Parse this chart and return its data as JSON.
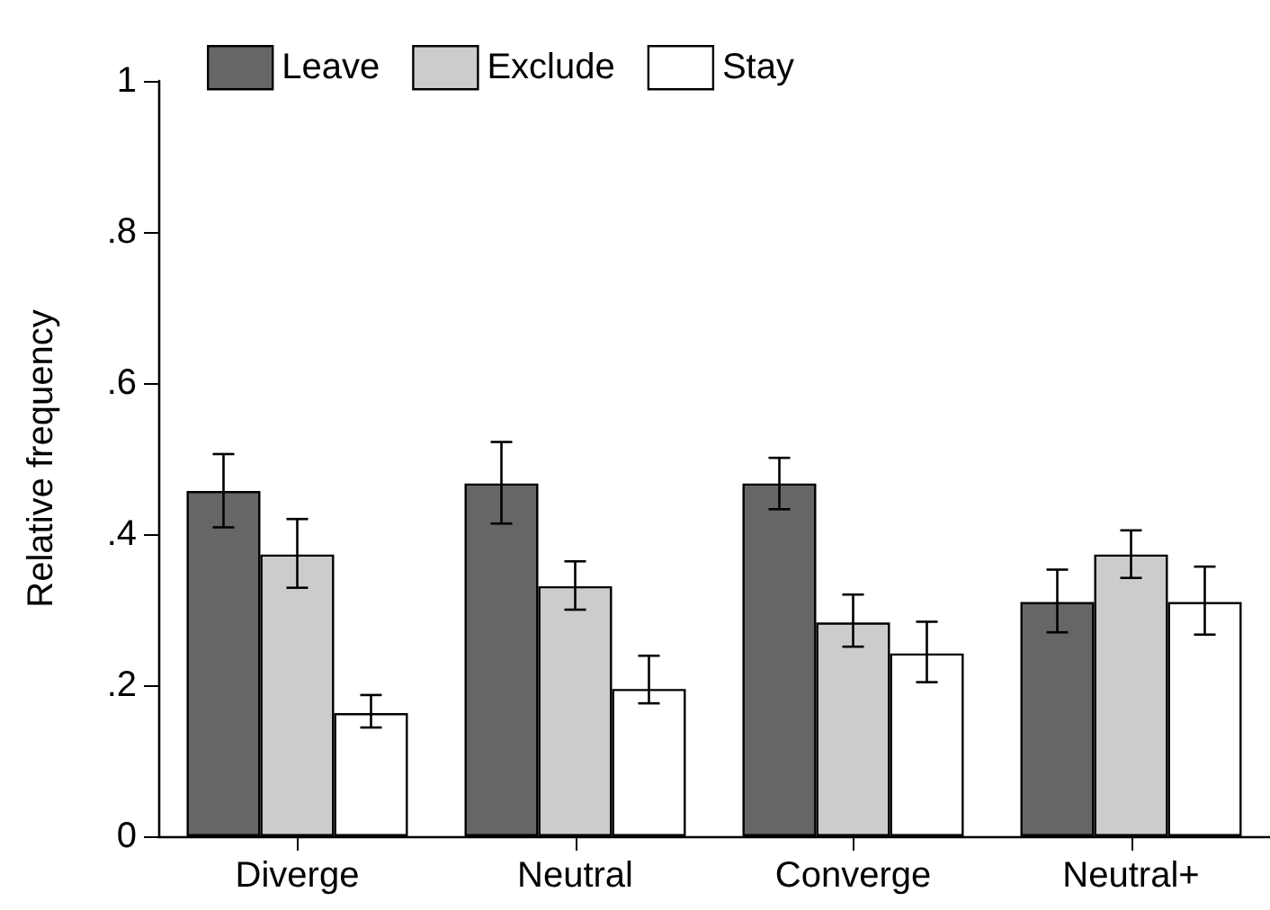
{
  "chart_data": {
    "type": "bar",
    "ylabel": "Relative frequency",
    "categories": [
      "Diverge",
      "Neutral",
      "Converge",
      "Neutral+"
    ],
    "series": [
      {
        "name": "Leave",
        "color": "#666666",
        "values": [
          0.457,
          0.467,
          0.467,
          0.31
        ],
        "errors": [
          [
            0.409,
            0.506
          ],
          [
            0.414,
            0.522
          ],
          [
            0.433,
            0.501
          ],
          [
            0.27,
            0.353
          ]
        ]
      },
      {
        "name": "Exclude",
        "color": "#cccccc",
        "values": [
          0.373,
          0.331,
          0.283,
          0.373
        ],
        "errors": [
          [
            0.329,
            0.42
          ],
          [
            0.3,
            0.364
          ],
          [
            0.251,
            0.32
          ],
          [
            0.342,
            0.405
          ]
        ]
      },
      {
        "name": "Stay",
        "color": "#ffffff",
        "values": [
          0.163,
          0.195,
          0.242,
          0.31
        ],
        "errors": [
          [
            0.144,
            0.187
          ],
          [
            0.176,
            0.239
          ],
          [
            0.204,
            0.284
          ],
          [
            0.267,
            0.357
          ]
        ]
      }
    ],
    "ylim": [
      0,
      1
    ],
    "yticks": [
      0,
      {
        "value": 0.2,
        "label": ".2"
      },
      {
        "value": 0.4,
        "label": ".4"
      },
      {
        "value": 0.6,
        "label": ".6"
      },
      {
        "value": 0.8,
        "label": ".8"
      },
      1
    ],
    "grid": false,
    "legend": "top left"
  }
}
